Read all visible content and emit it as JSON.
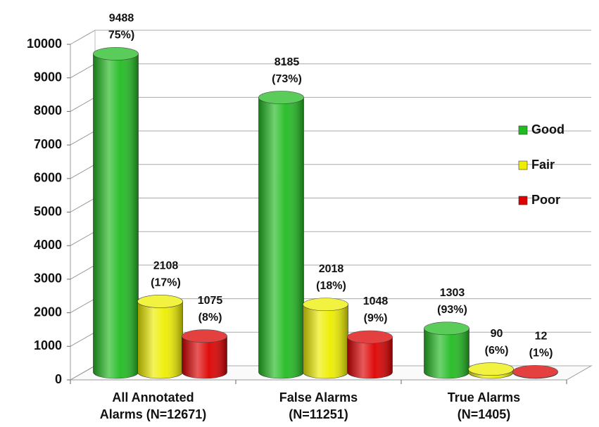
{
  "chart_data": {
    "type": "bar3d",
    "categories": [
      "All Annotated Alarms (N=12671)",
      "False Alarms (N=11251)",
      "True Alarms (N=1405)"
    ],
    "series": [
      {
        "name": "Good",
        "color": "#22bb22",
        "values": [
          9488,
          8185,
          1303
        ],
        "percent_labels": [
          "75%)",
          "(73%)",
          "(93%)"
        ]
      },
      {
        "name": "Fair",
        "color": "#eeee00",
        "values": [
          2108,
          2018,
          90
        ],
        "percent_labels": [
          "(17%)",
          "(18%)",
          "(6%)"
        ]
      },
      {
        "name": "Poor",
        "color": "#dd0000",
        "values": [
          1075,
          1048,
          12
        ],
        "percent_labels": [
          "(8%)",
          "(9%)",
          "(1%)"
        ]
      }
    ],
    "ylim": [
      0,
      10000
    ],
    "yticks": [
      0,
      1000,
      2000,
      3000,
      4000,
      5000,
      6000,
      7000,
      8000,
      9000,
      10000
    ],
    "grid": true,
    "legend": "right"
  }
}
